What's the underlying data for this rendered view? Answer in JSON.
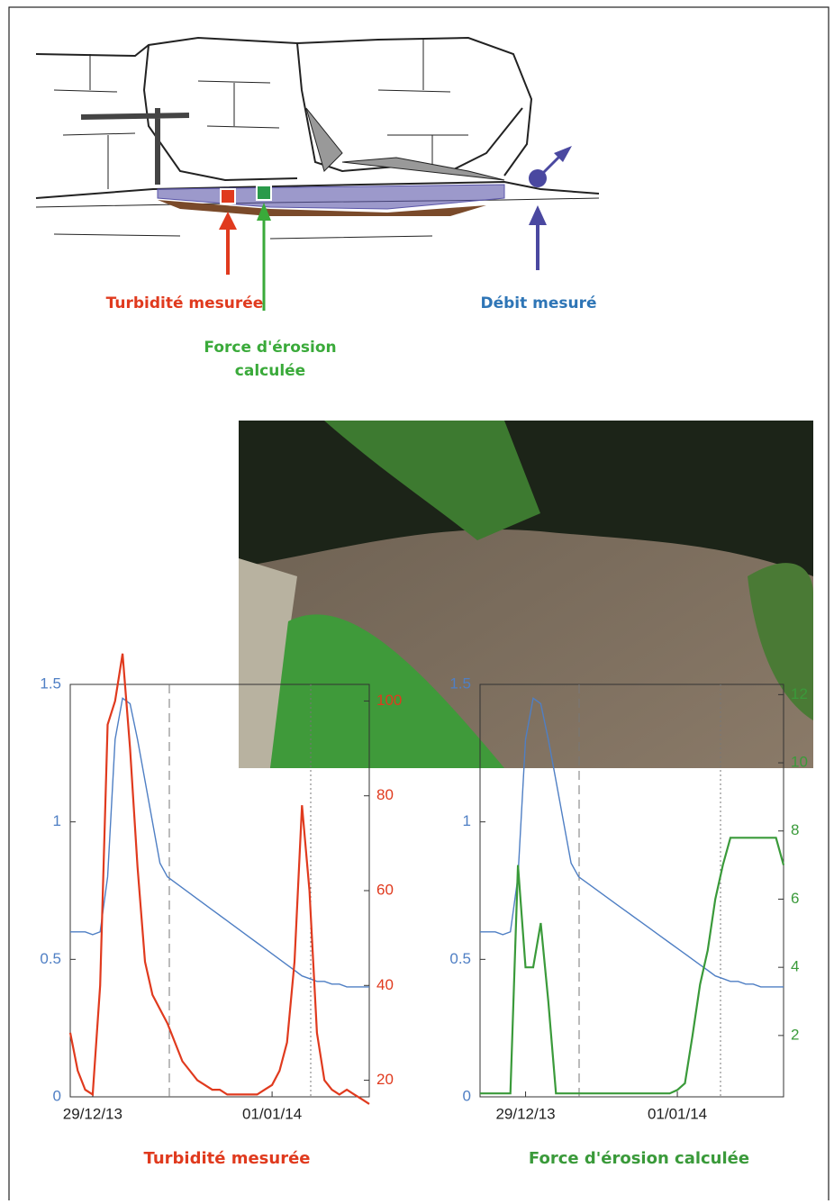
{
  "diagram": {
    "labels": {
      "turbidity": "Turbidité mesurée",
      "erosion": [
        "Force d'érosion",
        "calculée"
      ],
      "flow": "Débit mesuré"
    }
  },
  "chart_data": [
    {
      "type": "line",
      "title": "Turbidité mesurée",
      "title_color": "#e03a1e",
      "categories": [
        null,
        null,
        null,
        "29/12/13",
        null,
        null,
        null,
        null,
        null,
        null,
        null,
        null,
        null,
        null,
        null,
        null,
        null,
        null,
        null,
        null,
        null,
        null,
        null,
        null,
        null,
        null,
        null,
        "01/01/14",
        null,
        null,
        null,
        null,
        null,
        null,
        null,
        null,
        null,
        null,
        null,
        null,
        null
      ],
      "series": [
        {
          "color": "#4f7fc4",
          "values": [
            0.6,
            0.6,
            0.6,
            0.59,
            0.6,
            0.8,
            1.3,
            1.45,
            1.43,
            1.3,
            1.15,
            1.0,
            0.85,
            0.8,
            0.78,
            0.76,
            0.74,
            0.72,
            0.7,
            0.68,
            0.66,
            0.64,
            0.62,
            0.6,
            0.58,
            0.56,
            0.54,
            0.52,
            0.5,
            0.48,
            0.46,
            0.44,
            0.43,
            0.42,
            0.42,
            0.41,
            0.41,
            0.4,
            0.4,
            0.4,
            0.4
          ]
        },
        {
          "color": "#e03a1e",
          "axis": "y2",
          "values": [
            30,
            22,
            18,
            17,
            40,
            95,
            100,
            110,
            90,
            65,
            45,
            38,
            35,
            32,
            28,
            24,
            22,
            20,
            19,
            18,
            18,
            17,
            17,
            17,
            17,
            17,
            18,
            19,
            22,
            28,
            45,
            78,
            60,
            30,
            20,
            18,
            17,
            18,
            17,
            16,
            15
          ]
        }
      ],
      "ylim": [
        0,
        1.5
      ],
      "yticks": [
        0,
        0.5,
        1,
        1.5
      ],
      "y2lim": [
        16.5,
        103.5
      ],
      "y2ticks": [
        20,
        40,
        60,
        80,
        100
      ]
    },
    {
      "type": "line",
      "title": "Force d'érosion calculée",
      "title_color": "#3a9a3a",
      "categories": [
        null,
        null,
        null,
        null,
        null,
        null,
        "29/12/13",
        null,
        null,
        null,
        null,
        null,
        null,
        null,
        null,
        null,
        null,
        null,
        null,
        null,
        null,
        null,
        null,
        null,
        null,
        null,
        "01/01/14",
        null,
        null,
        null,
        null,
        null,
        null,
        null,
        null,
        null,
        null,
        null,
        null,
        null,
        null
      ],
      "series": [
        {
          "color": "#4f7fc4",
          "values": [
            0.6,
            0.6,
            0.6,
            0.59,
            0.6,
            0.8,
            1.3,
            1.45,
            1.43,
            1.3,
            1.15,
            1.0,
            0.85,
            0.8,
            0.78,
            0.76,
            0.74,
            0.72,
            0.7,
            0.68,
            0.66,
            0.64,
            0.62,
            0.6,
            0.58,
            0.56,
            0.54,
            0.52,
            0.5,
            0.48,
            0.46,
            0.44,
            0.43,
            0.42,
            0.42,
            0.41,
            0.41,
            0.4,
            0.4,
            0.4,
            0.4
          ]
        },
        {
          "color": "#3a9a3a",
          "axis": "y2",
          "values": [
            0.3,
            0.3,
            0.3,
            0.3,
            0.3,
            7,
            4,
            4,
            5.3,
            3,
            0.3,
            0.3,
            0.3,
            0.3,
            0.3,
            0.3,
            0.3,
            0.3,
            0.3,
            0.3,
            0.3,
            0.3,
            0.3,
            0.3,
            0.3,
            0.3,
            0.4,
            0.6,
            2,
            3.5,
            4.5,
            6,
            7,
            7.8,
            7.8,
            7.8,
            7.8,
            7.8,
            7.8,
            7.8,
            7
          ]
        }
      ],
      "ylim": [
        0,
        1.5
      ],
      "yticks": [
        0,
        0.5,
        1,
        1.5
      ],
      "y2lim": [
        0.2,
        12.3
      ],
      "y2ticks": [
        2,
        4,
        6,
        8,
        10,
        12
      ]
    }
  ]
}
